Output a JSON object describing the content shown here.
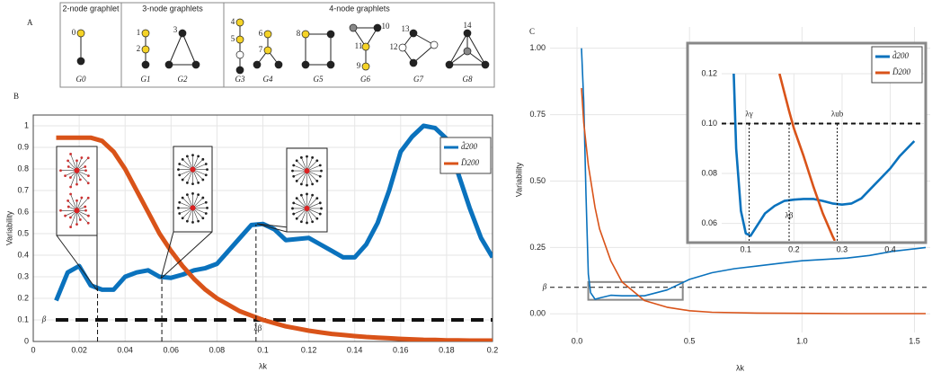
{
  "panel_a": {
    "label": "A",
    "groups": [
      {
        "title": "2-node graphlet",
        "graphlets": [
          {
            "name": "G0",
            "nodes": [
              0
            ]
          }
        ]
      },
      {
        "title": "3-node graphlets",
        "graphlets": [
          {
            "name": "G1",
            "nodes": [
              1,
              2
            ]
          },
          {
            "name": "G2",
            "nodes": [
              3
            ]
          }
        ]
      },
      {
        "title": "4-node graphlets",
        "graphlets": [
          {
            "name": "G3",
            "nodes": [
              4,
              5
            ]
          },
          {
            "name": "G4",
            "nodes": [
              6,
              7
            ]
          },
          {
            "name": "G5",
            "nodes": [
              8
            ]
          },
          {
            "name": "G6",
            "nodes": [
              9,
              10,
              11
            ]
          },
          {
            "name": "G7",
            "nodes": [
              12,
              13
            ]
          },
          {
            "name": "G8",
            "nodes": [
              14
            ]
          }
        ]
      }
    ]
  },
  "chart_data": [
    {
      "type": "line",
      "panel": "B",
      "x_label": "λk",
      "y_label": "Variability",
      "grid": true,
      "legend": "upper right",
      "x": [
        0.01,
        0.015,
        0.02,
        0.025,
        0.03,
        0.035,
        0.04,
        0.045,
        0.05,
        0.055,
        0.06,
        0.065,
        0.07,
        0.075,
        0.08,
        0.085,
        0.09,
        0.095,
        0.1,
        0.105,
        0.11,
        0.115,
        0.12,
        0.125,
        0.13,
        0.135,
        0.14,
        0.145,
        0.15,
        0.155,
        0.16,
        0.165,
        0.17,
        0.175,
        0.18,
        0.185,
        0.19,
        0.195,
        0.2
      ],
      "series": [
        {
          "name": "d̂200",
          "color": "#0a72bd",
          "values": [
            0.19,
            0.32,
            0.35,
            0.26,
            0.24,
            0.24,
            0.3,
            0.32,
            0.33,
            0.3,
            0.295,
            0.31,
            0.33,
            0.34,
            0.36,
            0.42,
            0.48,
            0.54,
            0.545,
            0.52,
            0.47,
            0.475,
            0.48,
            0.45,
            0.42,
            0.39,
            0.39,
            0.45,
            0.55,
            0.7,
            0.88,
            0.95,
            1.0,
            0.99,
            0.94,
            0.78,
            0.62,
            0.48,
            0.39
          ]
        },
        {
          "name": "D̄200",
          "color": "#d95319",
          "values": [
            0.945,
            0.945,
            0.945,
            0.945,
            0.93,
            0.88,
            0.8,
            0.7,
            0.6,
            0.5,
            0.42,
            0.35,
            0.29,
            0.24,
            0.2,
            0.17,
            0.14,
            0.12,
            0.1,
            0.085,
            0.07,
            0.06,
            0.05,
            0.042,
            0.035,
            0.03,
            0.025,
            0.021,
            0.018,
            0.015,
            0.012,
            0.01,
            0.008,
            0.007,
            0.005,
            0.005,
            0.004,
            0.004,
            0.004
          ]
        }
      ],
      "xlim": [
        0,
        0.2
      ],
      "xticks": [
        0,
        0.02,
        0.04,
        0.06,
        0.08,
        0.1,
        0.12,
        0.14,
        0.16,
        0.18,
        0.2
      ],
      "ylim": [
        0,
        1.05
      ],
      "yticks": [
        0,
        0.1,
        0.2,
        0.3,
        0.4,
        0.5,
        0.6,
        0.7,
        0.8,
        0.9,
        1
      ],
      "hlines": [
        {
          "y": 0.1,
          "label": "β"
        }
      ],
      "vlines": [
        {
          "x": 0.028
        },
        {
          "x": 0.056
        },
        {
          "x": 0.097,
          "label": "λβ"
        }
      ]
    },
    {
      "type": "line",
      "panel": "C",
      "x_label": "λk",
      "y_label": "Variability",
      "grid": true,
      "series": [
        {
          "color": "#0a72bd",
          "x": [
            0.02,
            0.03,
            0.04,
            0.05,
            0.06,
            0.08,
            0.1,
            0.15,
            0.2,
            0.3,
            0.4,
            0.5,
            0.6,
            0.7,
            0.8,
            0.9,
            1.0,
            1.1,
            1.2,
            1.3,
            1.4,
            1.5,
            1.55
          ],
          "values": [
            1.0,
            0.8,
            0.45,
            0.15,
            0.08,
            0.055,
            0.06,
            0.07,
            0.068,
            0.068,
            0.09,
            0.13,
            0.155,
            0.17,
            0.18,
            0.19,
            0.2,
            0.205,
            0.21,
            0.22,
            0.235,
            0.245,
            0.25
          ]
        },
        {
          "color": "#d95319",
          "x": [
            0.02,
            0.03,
            0.05,
            0.08,
            0.1,
            0.15,
            0.2,
            0.3,
            0.4,
            0.5,
            0.6,
            0.8,
            1.0,
            1.2,
            1.55
          ],
          "values": [
            0.85,
            0.72,
            0.56,
            0.4,
            0.32,
            0.2,
            0.12,
            0.05,
            0.025,
            0.012,
            0.006,
            0.003,
            0.002,
            0.001,
            0.001
          ]
        }
      ],
      "xlim": [
        -0.12,
        1.57
      ],
      "xticks": [
        {
          "value": 0,
          "label": "0.0"
        },
        0.5,
        {
          "value": 1,
          "label": "1.0"
        },
        1.5
      ],
      "ylim": [
        -0.07,
        1.08
      ],
      "yticks": [
        {
          "value": 0,
          "label": "0.00"
        },
        0.25,
        {
          "value": 0.5,
          "label": "0.50"
        },
        0.75,
        {
          "value": 1,
          "label": "1.00"
        }
      ],
      "hlines": [
        {
          "y": 0.1,
          "label": "β"
        }
      ]
    },
    {
      "type": "line",
      "grid": true,
      "legend": "upper right",
      "series": [
        {
          "name": "d̂200",
          "color": "#0a72bd",
          "x": [
            0.075,
            0.08,
            0.09,
            0.1,
            0.11,
            0.12,
            0.14,
            0.16,
            0.18,
            0.2,
            0.22,
            0.24,
            0.26,
            0.28,
            0.3,
            0.32,
            0.34,
            0.36,
            0.38,
            0.4,
            0.42,
            0.45
          ],
          "values": [
            0.12,
            0.09,
            0.065,
            0.056,
            0.055,
            0.058,
            0.064,
            0.067,
            0.069,
            0.0695,
            0.0698,
            0.0698,
            0.069,
            0.068,
            0.0675,
            0.068,
            0.07,
            0.074,
            0.078,
            0.082,
            0.087,
            0.093
          ]
        },
        {
          "name": "D̄200",
          "color": "#d95319",
          "x": [
            0.17,
            0.19,
            0.2,
            0.22,
            0.24,
            0.26,
            0.28,
            0.285
          ],
          "values": [
            0.12,
            0.105,
            0.098,
            0.087,
            0.075,
            0.064,
            0.055,
            0.053
          ]
        }
      ],
      "xlim": [
        0.05,
        0.47
      ],
      "xticks": [
        0.1,
        0.2,
        0.3,
        0.4
      ],
      "ylim": [
        0.053,
        0.12
      ],
      "yticks": [
        0.06,
        0.08,
        {
          "value": 0.1,
          "label": "0.10"
        },
        0.12
      ],
      "hlines": [
        {
          "y": 0.1
        }
      ],
      "vlines": [
        {
          "x": 0.107,
          "label": "λγ"
        },
        {
          "x": 0.19,
          "label": "λβ"
        },
        {
          "x": 0.29,
          "label": "λub"
        }
      ]
    }
  ]
}
